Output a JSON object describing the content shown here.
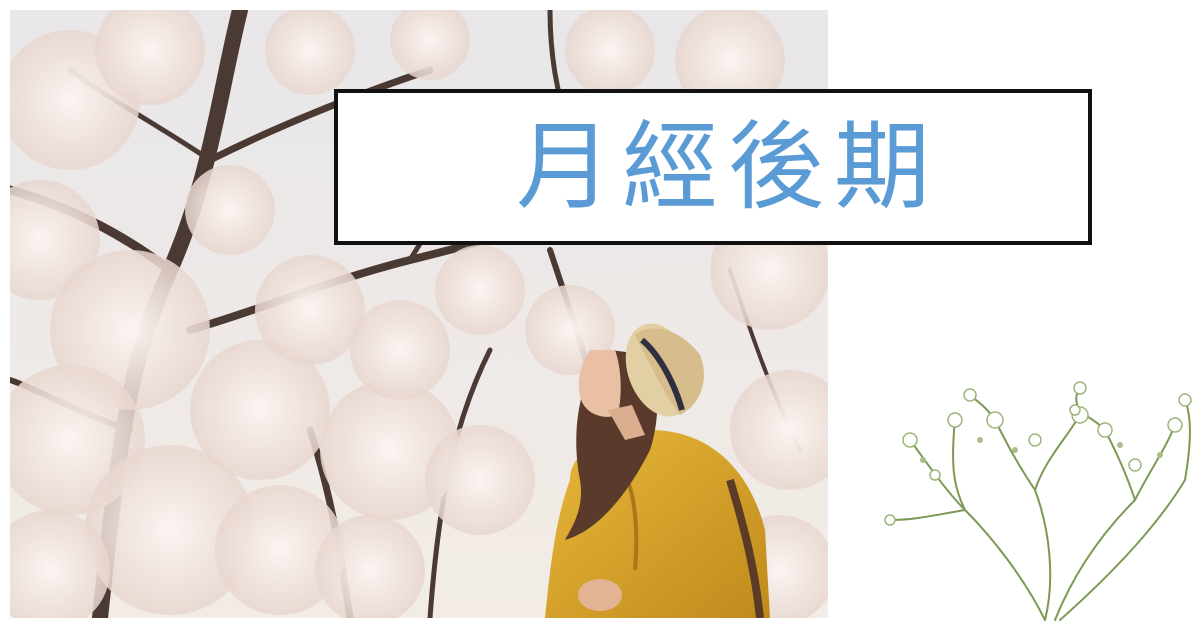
{
  "title": {
    "text": "月經後期",
    "color": "#5a9bd5"
  },
  "photo": {
    "subject": "woman-in-yellow-coat-under-cherry-blossoms",
    "palette": {
      "blossom": "#f2e6e0",
      "branch": "#4a3a33",
      "coat": "#d9a52a",
      "hat": "#e3cfa4"
    }
  },
  "decoration": {
    "icon": "babys-breath-sprig-icon",
    "stem_color": "#7c9a55"
  }
}
